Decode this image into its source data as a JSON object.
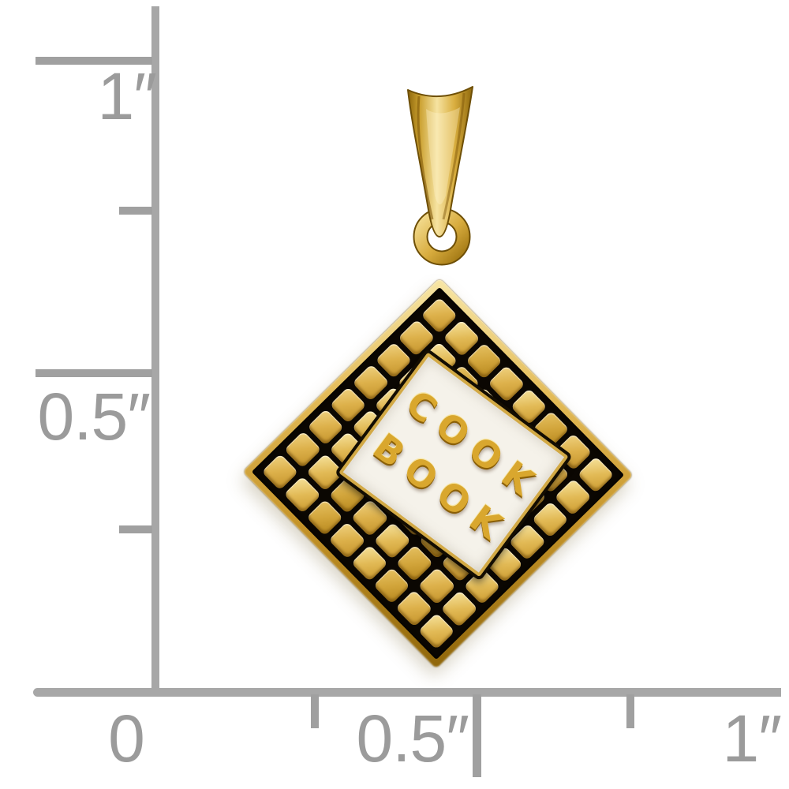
{
  "ruler": {
    "line_color": "#a7a7a7",
    "label_color": "#9b9b9b",
    "vertical": {
      "one_inch": "1″",
      "half_inch": "0.5″"
    },
    "horizontal": {
      "zero": "0",
      "half_inch": "0.5″",
      "one_inch": "1″"
    }
  },
  "pendant": {
    "text_line1": "COOK",
    "text_line2": "BOOK",
    "tile_grid": {
      "rows": 8,
      "cols": 8
    },
    "colors": {
      "gold_base": "#ddb14b",
      "gold_light": "#f7e6a6",
      "gold_dark": "#8f660a",
      "enamel_black": "#0b0702",
      "enamel_white": "#f5f2ea",
      "letter_gold": "#d9a72e"
    }
  }
}
